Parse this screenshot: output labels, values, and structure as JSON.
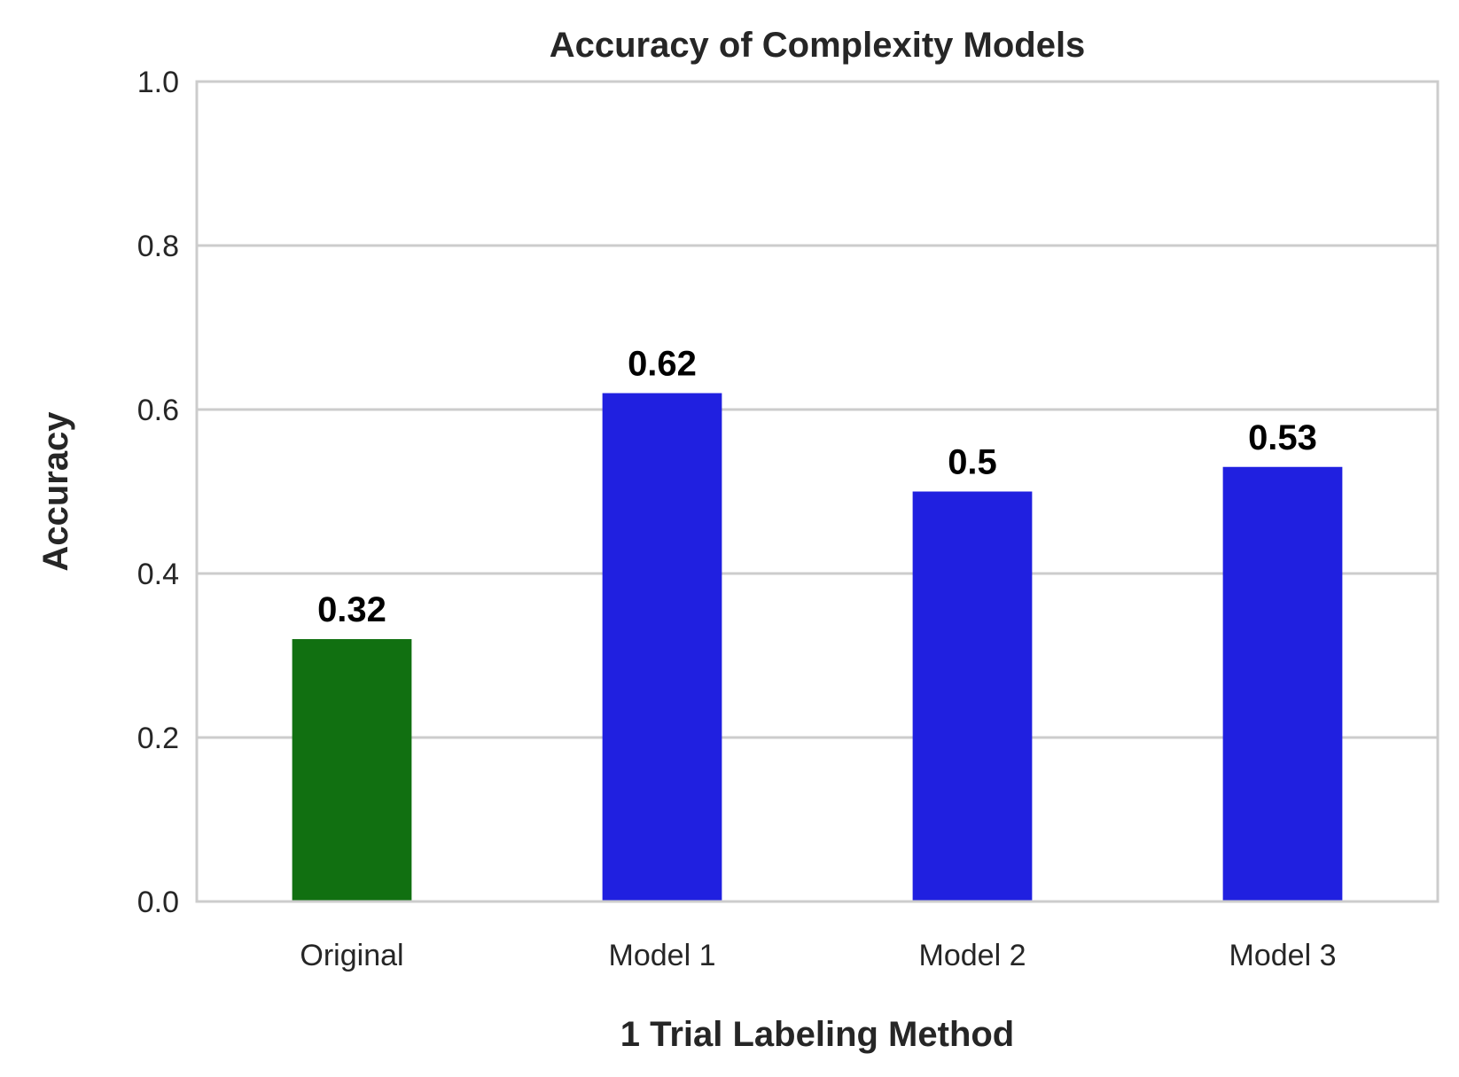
{
  "chart_data": {
    "type": "bar",
    "title": "Accuracy of Complexity Models",
    "xlabel": "1 Trial Labeling Method",
    "ylabel": "Accuracy",
    "categories": [
      "Original",
      "Model 1",
      "Model 2",
      "Model 3"
    ],
    "values": [
      0.32,
      0.62,
      0.5,
      0.53
    ],
    "data_labels": [
      "0.32",
      "0.62",
      "0.5",
      "0.53"
    ],
    "bar_colors": [
      "#117011",
      "#2020e0",
      "#2020e0",
      "#2020e0"
    ],
    "ylim": [
      0,
      1.0
    ],
    "yticks": [
      0.0,
      0.2,
      0.4,
      0.6,
      0.8,
      1.0
    ],
    "ytick_labels": [
      "0.0",
      "0.2",
      "0.4",
      "0.6",
      "0.8",
      "1.0"
    ],
    "grid": true,
    "grid_axis": "y",
    "legend": "none"
  }
}
